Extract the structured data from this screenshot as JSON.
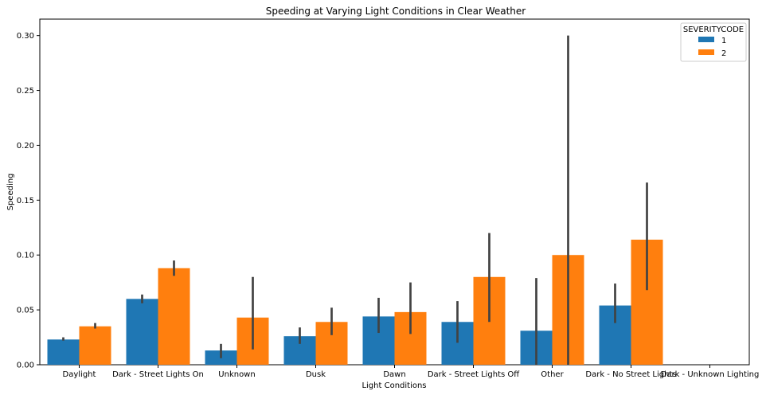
{
  "chart_data": {
    "type": "bar",
    "title": "Speeding at Varying Light Conditions in Clear Weather",
    "xlabel": "Light Conditions",
    "ylabel": "Speeding",
    "categories": [
      "Daylight",
      "Dark - Street Lights On",
      "Unknown",
      "Dusk",
      "Dawn",
      "Dark - Street Lights Off",
      "Other",
      "Dark - No Street Lights",
      "Dark - Unknown Lighting"
    ],
    "series": [
      {
        "name": "1",
        "color": "#1f77b4",
        "values": [
          0.023,
          0.06,
          0.013,
          0.026,
          0.044,
          0.039,
          0.031,
          0.054,
          0
        ],
        "ci": [
          [
            0.022,
            0.025
          ],
          [
            0.056,
            0.064
          ],
          [
            0.006,
            0.019
          ],
          [
            0.019,
            0.034
          ],
          [
            0.029,
            0.061
          ],
          [
            0.02,
            0.058
          ],
          [
            0.0,
            0.079
          ],
          [
            0.038,
            0.074
          ],
          null
        ]
      },
      {
        "name": "2",
        "color": "#ff7f0e",
        "values": [
          0.035,
          0.088,
          0.043,
          0.039,
          0.048,
          0.08,
          0.1,
          0.114,
          0
        ],
        "ci": [
          [
            0.033,
            0.038
          ],
          [
            0.081,
            0.095
          ],
          [
            0.014,
            0.08
          ],
          [
            0.027,
            0.052
          ],
          [
            0.028,
            0.075
          ],
          [
            0.039,
            0.12
          ],
          [
            0.0,
            0.3
          ],
          [
            0.068,
            0.166
          ],
          null
        ]
      }
    ],
    "yticks": [
      "0.00",
      "0.05",
      "0.10",
      "0.15",
      "0.20",
      "0.25",
      "0.30"
    ],
    "ylim": [
      0,
      0.315
    ],
    "legend": {
      "title": "SEVERITYCODE",
      "placement": "top-right"
    },
    "grid": false
  }
}
